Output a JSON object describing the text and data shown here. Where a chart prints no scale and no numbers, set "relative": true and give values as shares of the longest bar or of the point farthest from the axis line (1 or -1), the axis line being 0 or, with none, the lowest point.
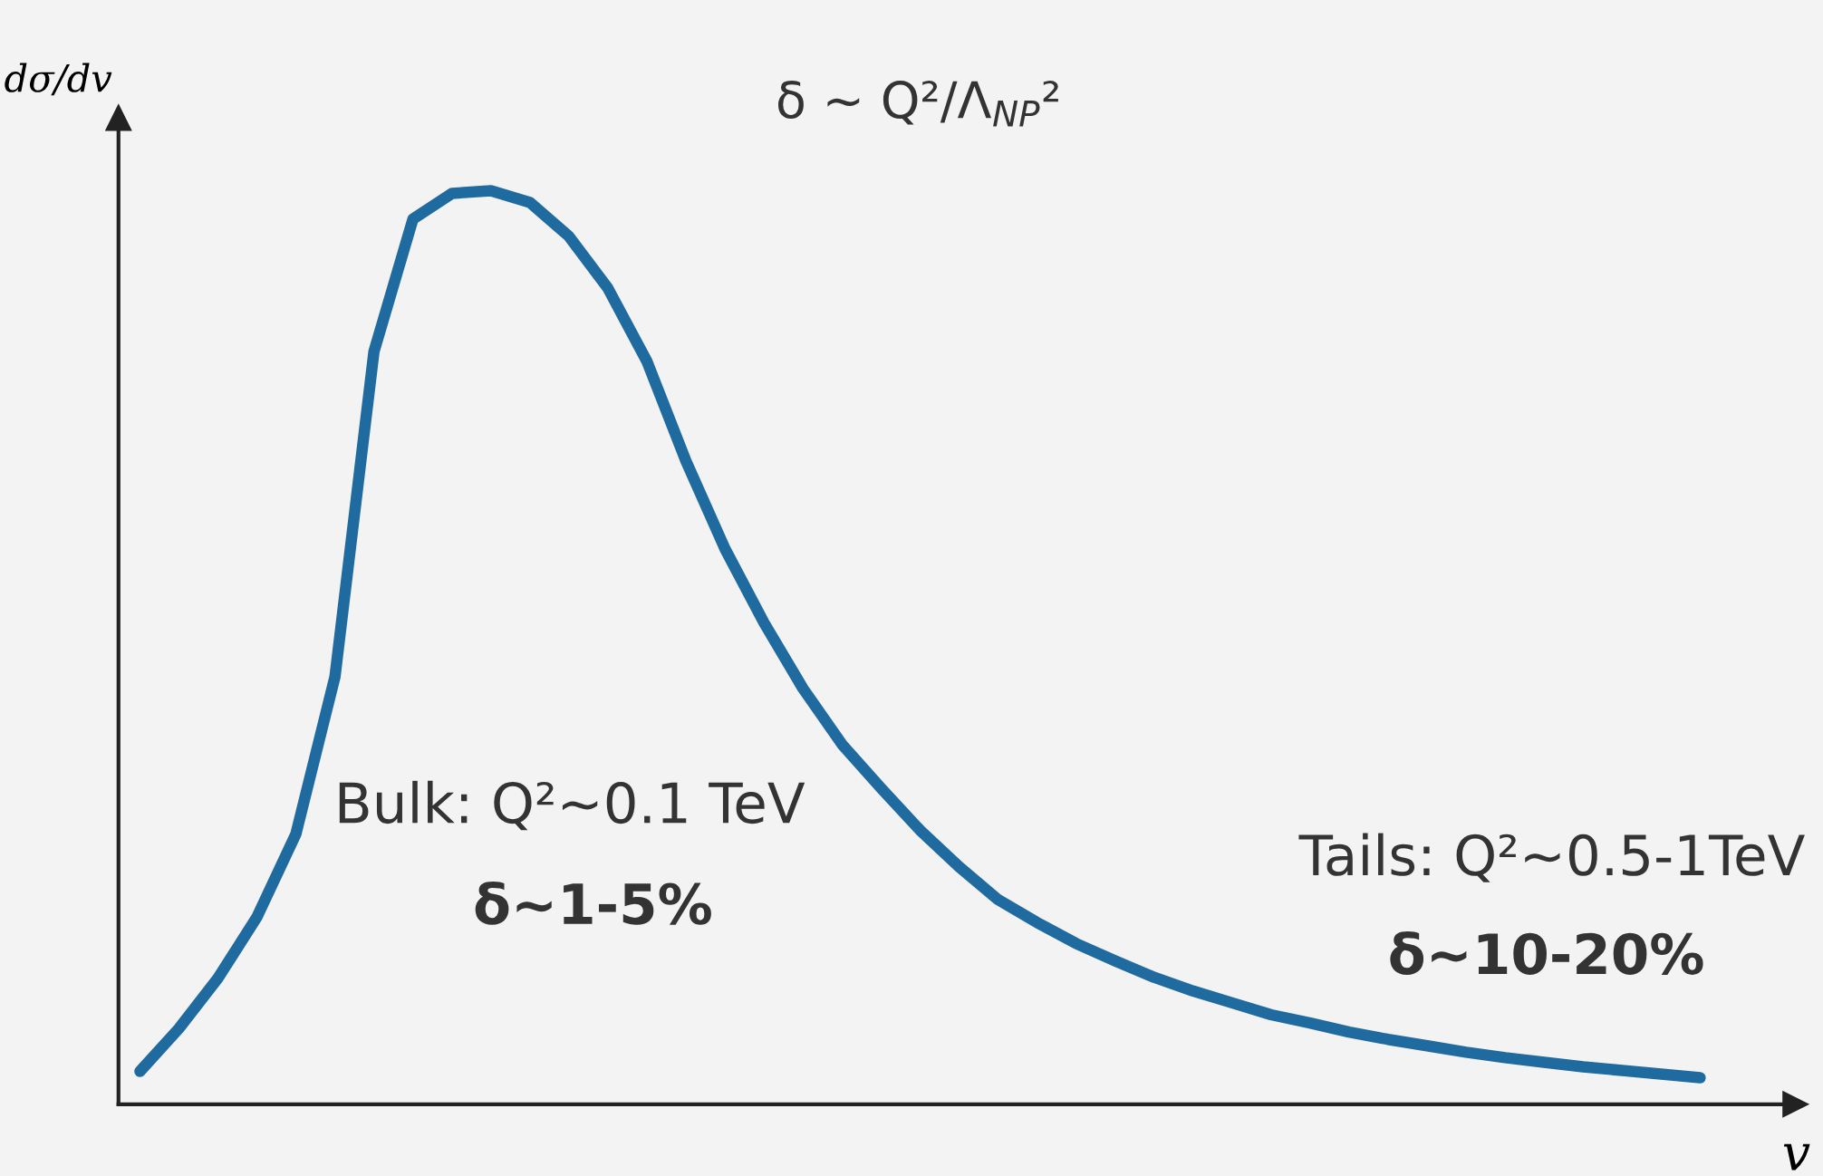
{
  "chart_data": {
    "type": "line",
    "relative": true,
    "ylabel": "dσ/dv",
    "xlabel": "v",
    "categories": [
      null,
      null,
      null,
      null,
      null,
      null,
      null,
      null,
      null,
      null,
      null,
      null,
      null,
      null,
      null,
      null,
      null,
      null,
      null,
      null,
      null,
      null,
      null,
      null,
      null,
      null,
      null,
      null,
      null,
      null,
      null,
      null,
      null,
      null,
      null,
      null,
      null,
      null,
      null,
      null,
      null
    ],
    "series": [
      {
        "color": "#1f6a9e",
        "values": [
          0.036,
          0.083,
          0.138,
          0.205,
          0.296,
          0.468,
          0.824,
          0.969,
          0.997,
          1,
          0.987,
          0.95,
          0.893,
          0.813,
          0.704,
          0.608,
          0.527,
          0.455,
          0.394,
          0.346,
          0.3,
          0.26,
          0.224,
          0.199,
          0.176,
          0.157,
          0.139,
          0.124,
          0.111,
          0.098,
          0.089,
          0.079,
          0.071,
          0.064,
          0.057,
          0.051,
          0.046,
          0.041,
          0.037,
          0.033,
          0.029
        ]
      }
    ],
    "annotations": [
      "δ ~ Q²/Λ$_{NP}$²",
      "Bulk: Q²~0.1 TeV",
      "δ~1-5%",
      "Tails: Q²~0.5-1TeV",
      "δ~10-20%"
    ],
    "line_style": "solid"
  }
}
